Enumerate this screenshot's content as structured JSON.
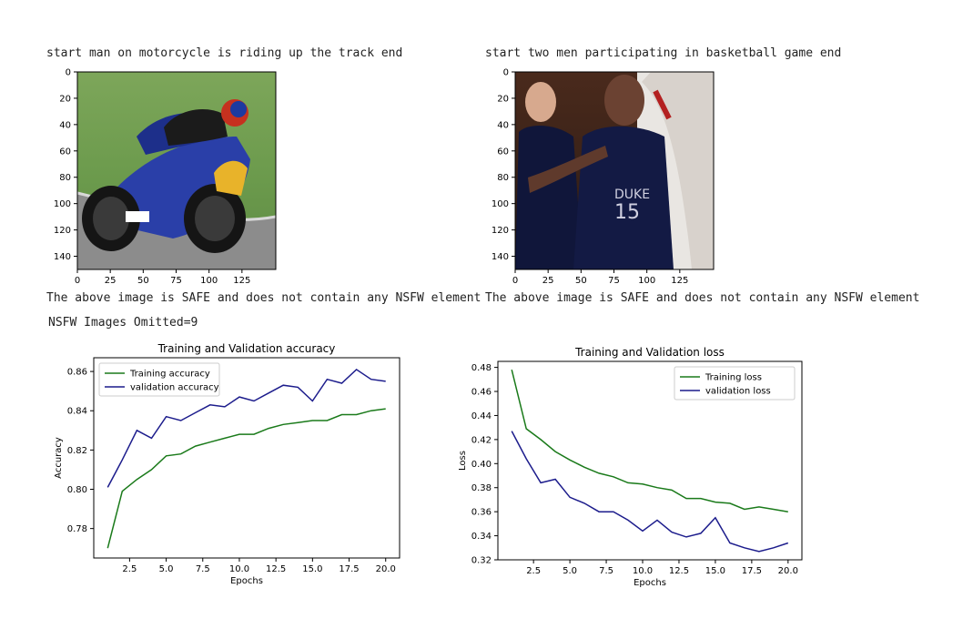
{
  "captions": {
    "left_title": "start man on motorcycle is riding up the track end",
    "right_title": "start two men participating in basketball game end",
    "left_status": "The above image is SAFE and does not contain any NSFW element",
    "right_status": "The above image is SAFE and does not contain any NSFW element",
    "nsfw_count": "NSFW Images Omitted=9"
  },
  "image_axes": {
    "y_ticks": [
      "0",
      "20",
      "40",
      "60",
      "80",
      "100",
      "120",
      "140"
    ],
    "x_ticks": [
      "0",
      "25",
      "50",
      "75",
      "100",
      "125"
    ]
  },
  "colors": {
    "training": "#1a7a1a",
    "validation": "#1c1c8c"
  },
  "chart_data": [
    {
      "type": "line",
      "title": "Training and Validation accuracy",
      "xlabel": "Epochs",
      "ylabel": "Accuracy",
      "xlim": [
        0.05,
        20.95
      ],
      "ylim": [
        0.765,
        0.867
      ],
      "x_ticks": [
        2.5,
        5.0,
        7.5,
        10.0,
        12.5,
        15.0,
        17.5,
        20.0
      ],
      "x_tick_labels": [
        "2.5",
        "5.0",
        "7.5",
        "10.0",
        "12.5",
        "15.0",
        "17.5",
        "20.0"
      ],
      "y_ticks": [
        0.78,
        0.8,
        0.82,
        0.84,
        0.86
      ],
      "y_tick_labels": [
        "0.78",
        "0.80",
        "0.82",
        "0.84",
        "0.86"
      ],
      "legend_position": "upper-left",
      "x": [
        1,
        2,
        3,
        4,
        5,
        6,
        7,
        8,
        9,
        10,
        11,
        12,
        13,
        14,
        15,
        16,
        17,
        18,
        19,
        20
      ],
      "series": [
        {
          "name": "Training accuracy",
          "color_key": "training",
          "values": [
            0.77,
            0.799,
            0.805,
            0.81,
            0.817,
            0.818,
            0.822,
            0.824,
            0.826,
            0.828,
            0.828,
            0.831,
            0.833,
            0.834,
            0.835,
            0.835,
            0.838,
            0.838,
            0.84,
            0.841
          ]
        },
        {
          "name": "validation accuracy",
          "color_key": "validation",
          "values": [
            0.801,
            0.815,
            0.83,
            0.826,
            0.837,
            0.835,
            0.839,
            0.843,
            0.842,
            0.847,
            0.845,
            0.849,
            0.853,
            0.852,
            0.845,
            0.856,
            0.854,
            0.861,
            0.856,
            0.855
          ]
        }
      ]
    },
    {
      "type": "line",
      "title": "Training and Validation loss",
      "xlabel": "Epochs",
      "ylabel": "Loss",
      "xlim": [
        0.05,
        20.95
      ],
      "ylim": [
        0.32,
        0.485
      ],
      "x_ticks": [
        2.5,
        5.0,
        7.5,
        10.0,
        12.5,
        15.0,
        17.5,
        20.0
      ],
      "x_tick_labels": [
        "2.5",
        "5.0",
        "7.5",
        "10.0",
        "12.5",
        "15.0",
        "17.5",
        "20.0"
      ],
      "y_ticks": [
        0.32,
        0.34,
        0.36,
        0.38,
        0.4,
        0.42,
        0.44,
        0.46,
        0.48
      ],
      "y_tick_labels": [
        "0.32",
        "0.34",
        "0.36",
        "0.38",
        "0.40",
        "0.42",
        "0.44",
        "0.46",
        "0.48"
      ],
      "legend_position": "upper-right",
      "x": [
        1,
        2,
        3,
        4,
        5,
        6,
        7,
        8,
        9,
        10,
        11,
        12,
        13,
        14,
        15,
        16,
        17,
        18,
        19,
        20
      ],
      "series": [
        {
          "name": "Training loss",
          "color_key": "training",
          "values": [
            0.478,
            0.429,
            0.42,
            0.41,
            0.403,
            0.397,
            0.392,
            0.389,
            0.384,
            0.383,
            0.38,
            0.378,
            0.371,
            0.371,
            0.368,
            0.367,
            0.362,
            0.364,
            0.362,
            0.36
          ]
        },
        {
          "name": "validation loss",
          "color_key": "validation",
          "values": [
            0.427,
            0.404,
            0.384,
            0.387,
            0.372,
            0.367,
            0.36,
            0.36,
            0.353,
            0.344,
            0.353,
            0.343,
            0.339,
            0.342,
            0.355,
            0.334,
            0.33,
            0.327,
            0.33,
            0.334
          ]
        }
      ]
    }
  ]
}
